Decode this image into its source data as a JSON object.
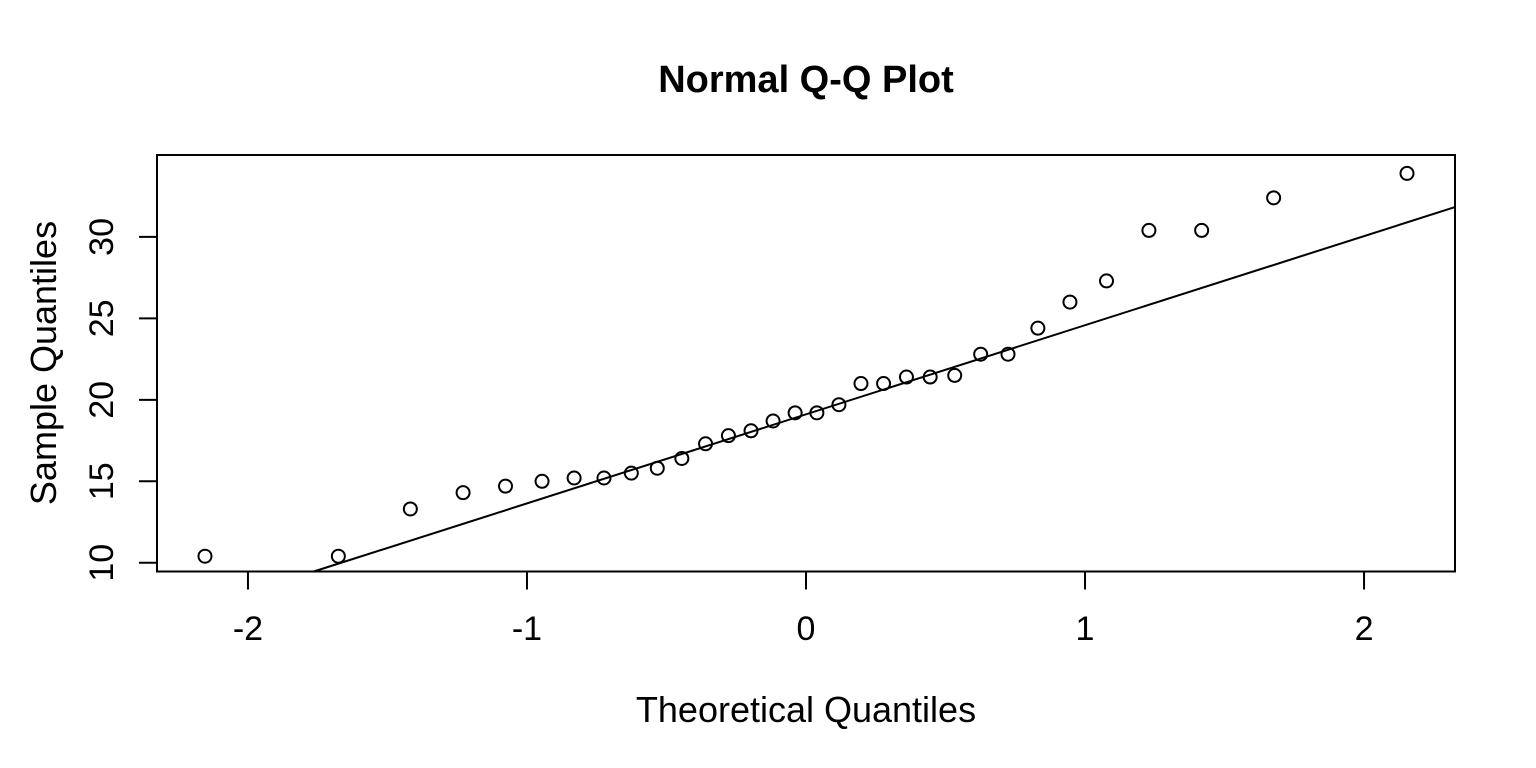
{
  "chart_data": {
    "type": "scatter",
    "title": "Normal Q-Q Plot",
    "xlabel": "Theoretical Quantiles",
    "ylabel": "Sample Quantiles",
    "x": [
      -2.154,
      -1.676,
      -1.418,
      -1.229,
      -1.077,
      -0.946,
      -0.831,
      -0.724,
      -0.626,
      -0.533,
      -0.445,
      -0.36,
      -0.278,
      -0.197,
      -0.118,
      -0.039,
      0.039,
      0.118,
      0.197,
      0.278,
      0.36,
      0.445,
      0.533,
      0.626,
      0.724,
      0.831,
      0.946,
      1.077,
      1.229,
      1.418,
      1.676,
      2.154
    ],
    "y": [
      10.4,
      10.4,
      13.3,
      14.3,
      14.7,
      15.0,
      15.2,
      15.2,
      15.5,
      15.8,
      16.4,
      17.3,
      17.8,
      18.1,
      18.7,
      19.2,
      19.2,
      19.7,
      21.0,
      21.0,
      21.4,
      21.4,
      21.5,
      22.8,
      22.8,
      24.4,
      26.0,
      27.3,
      30.4,
      30.4,
      32.4,
      33.9
    ],
    "x_ticks": [
      -2,
      -1,
      0,
      1,
      2
    ],
    "y_ticks": [
      10,
      15,
      20,
      25,
      30
    ],
    "xlim": [
      -2.326,
      2.326
    ],
    "ylim": [
      9.46,
      35.03
    ],
    "reference_line": {
      "slope": 5.47,
      "intercept": 19.11
    },
    "marker": "open-circle",
    "grid": "off",
    "legend": "none",
    "colors": {
      "foreground": "#000000",
      "background": "#ffffff"
    }
  }
}
